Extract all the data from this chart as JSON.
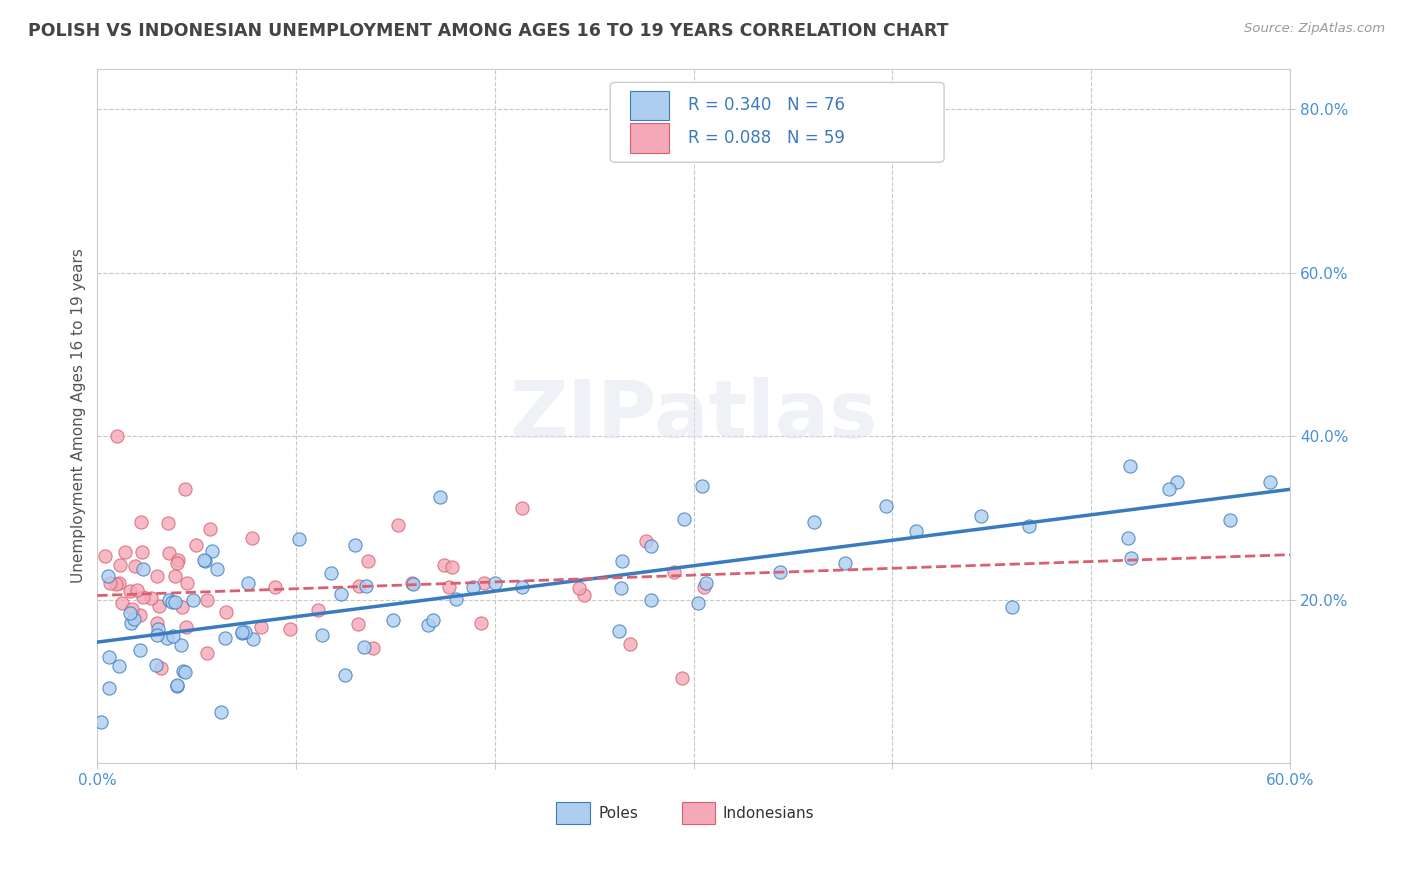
{
  "title": "POLISH VS INDONESIAN UNEMPLOYMENT AMONG AGES 16 TO 19 YEARS CORRELATION CHART",
  "source_text": "Source: ZipAtlas.com",
  "ylabel": "Unemployment Among Ages 16 to 19 years",
  "xlim": [
    0.0,
    0.6
  ],
  "ylim": [
    0.0,
    0.85
  ],
  "xticks": [
    0.0,
    0.1,
    0.2,
    0.3,
    0.4,
    0.5,
    0.6
  ],
  "xticklabels": [
    "0.0%",
    "",
    "",
    "",
    "",
    "",
    "60.0%"
  ],
  "yticks_right": [
    0.2,
    0.4,
    0.6,
    0.8
  ],
  "yticklabels_right": [
    "20.0%",
    "40.0%",
    "60.0%",
    "80.0%"
  ],
  "grid_color": "#c8c8c8",
  "background_color": "#ffffff",
  "title_color": "#444444",
  "title_fontsize": 12.5,
  "axis_label_color": "#555555",
  "tick_color": "#4a90d9",
  "poles_color": "#aecef0",
  "indonesians_color": "#f4a8b8",
  "poles_line_color": "#3a7bbf",
  "indonesians_line_color": "#d96070",
  "poles_R": 0.34,
  "poles_N": 76,
  "indonesians_R": 0.088,
  "indonesians_N": 59,
  "watermark": "ZIPatlas",
  "poles_trend_start_y": 0.148,
  "poles_trend_end_y": 0.335,
  "indo_trend_start_y": 0.205,
  "indo_trend_end_y": 0.255
}
